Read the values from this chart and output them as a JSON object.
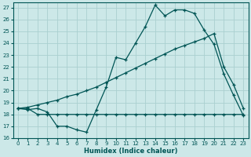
{
  "xlabel": "Humidex (Indice chaleur)",
  "bg_color": "#cce8e8",
  "grid_color": "#aad0d0",
  "line_color": "#005555",
  "xlim": [
    -0.5,
    23.5
  ],
  "ylim": [
    16,
    27.4
  ],
  "xticks": [
    0,
    1,
    2,
    3,
    4,
    5,
    6,
    7,
    8,
    9,
    10,
    11,
    12,
    13,
    14,
    15,
    16,
    17,
    18,
    19,
    20,
    21,
    22,
    23
  ],
  "yticks": [
    16,
    17,
    18,
    19,
    20,
    21,
    22,
    23,
    24,
    25,
    26,
    27
  ],
  "line1_x": [
    0,
    1,
    2,
    3,
    4,
    5,
    6,
    7,
    8,
    9,
    10,
    11,
    12,
    13,
    14,
    15,
    16,
    17,
    18,
    19,
    20,
    21,
    22,
    23
  ],
  "line1_y": [
    18.5,
    18.4,
    18.5,
    18.2,
    17.0,
    17.0,
    16.7,
    16.5,
    18.4,
    20.3,
    22.8,
    22.6,
    24.0,
    25.4,
    27.2,
    26.3,
    26.8,
    26.8,
    26.5,
    25.1,
    23.9,
    21.4,
    19.6,
    17.9
  ],
  "line2_x": [
    0,
    1,
    2,
    3,
    4,
    5,
    6,
    7,
    8,
    9,
    10,
    11,
    12,
    13,
    14,
    15,
    16,
    17,
    18,
    19,
    20,
    21,
    22,
    23
  ],
  "line2_y": [
    18.5,
    18.5,
    18.0,
    18.0,
    18.0,
    18.0,
    18.0,
    18.0,
    18.0,
    18.0,
    18.0,
    18.0,
    18.0,
    18.0,
    18.0,
    18.0,
    18.0,
    18.0,
    18.0,
    18.0,
    18.0,
    18.0,
    18.0,
    18.0
  ],
  "line3_x": [
    0,
    1,
    2,
    3,
    4,
    5,
    6,
    7,
    8,
    9,
    10,
    11,
    12,
    13,
    14,
    15,
    16,
    17,
    18,
    19,
    20,
    21,
    22,
    23
  ],
  "line3_y": [
    18.5,
    18.6,
    18.8,
    19.0,
    19.2,
    19.5,
    19.7,
    20.0,
    20.3,
    20.7,
    21.1,
    21.5,
    21.9,
    22.3,
    22.7,
    23.1,
    23.5,
    23.8,
    24.1,
    24.4,
    24.8,
    22.0,
    20.5,
    18.5
  ]
}
